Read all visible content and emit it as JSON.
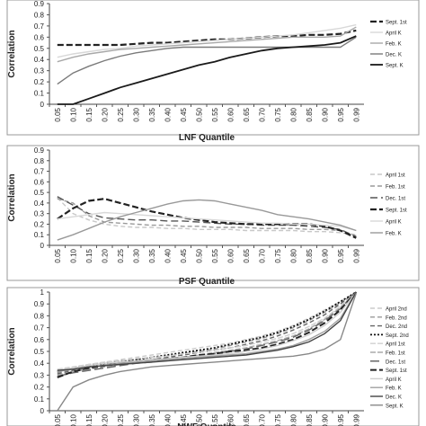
{
  "chart_data": [
    {
      "type": "line",
      "xlabel": "LNF Quantile",
      "ylabel": "Correlation",
      "categories": [
        "0.05",
        "0.10",
        "0.15",
        "0.20",
        "0.25",
        "0.30",
        "0.35",
        "0.40",
        "0.45",
        "0.50",
        "0.55",
        "0.60",
        "0.65",
        "0.70",
        "0.75",
        "0.80",
        "0.85",
        "0.90",
        "0.95",
        "0.99"
      ],
      "yticks": [
        "0",
        "0.1",
        "0.2",
        "0.3",
        "0.4",
        "0.5",
        "0.6",
        "0.7",
        "0.8",
        "0.9"
      ],
      "ylim": [
        0,
        0.9
      ],
      "legend_position": "right",
      "series": [
        {
          "name": "Sept. 1st",
          "color": "#222222",
          "dash": "7,3",
          "width": 2.2,
          "values": [
            0.53,
            0.53,
            0.53,
            0.53,
            0.53,
            0.54,
            0.55,
            0.55,
            0.56,
            0.57,
            0.58,
            0.58,
            0.59,
            0.6,
            0.61,
            0.61,
            0.62,
            0.62,
            0.63,
            0.66
          ]
        },
        {
          "name": "April K",
          "color": "#d8d8d8",
          "dash": "",
          "width": 1.4,
          "values": [
            0.42,
            0.45,
            0.47,
            0.49,
            0.5,
            0.52,
            0.53,
            0.54,
            0.55,
            0.56,
            0.57,
            0.58,
            0.59,
            0.6,
            0.61,
            0.62,
            0.64,
            0.66,
            0.68,
            0.71
          ]
        },
        {
          "name": "Feb. K",
          "color": "#a8a8a8",
          "dash": "",
          "width": 1.4,
          "values": [
            0.38,
            0.42,
            0.45,
            0.47,
            0.49,
            0.5,
            0.51,
            0.52,
            0.53,
            0.54,
            0.55,
            0.56,
            0.57,
            0.58,
            0.59,
            0.6,
            0.6,
            0.6,
            0.61,
            0.69
          ]
        },
        {
          "name": "Dec. K",
          "color": "#7a7a7a",
          "dash": "",
          "width": 1.4,
          "values": [
            0.18,
            0.28,
            0.34,
            0.39,
            0.43,
            0.46,
            0.48,
            0.5,
            0.51,
            0.51,
            0.51,
            0.51,
            0.51,
            0.51,
            0.51,
            0.51,
            0.51,
            0.51,
            0.51,
            0.6
          ]
        },
        {
          "name": "Sept. K",
          "color": "#1a1a1a",
          "dash": "",
          "width": 1.8,
          "values": [
            0.0,
            0.0,
            0.05,
            0.1,
            0.15,
            0.19,
            0.23,
            0.27,
            0.31,
            0.35,
            0.38,
            0.42,
            0.45,
            0.48,
            0.5,
            0.51,
            0.52,
            0.53,
            0.55,
            0.61
          ]
        }
      ]
    },
    {
      "type": "line",
      "xlabel": "PSF Quantile",
      "ylabel": "Correlation",
      "categories": [
        "0.05",
        "0.10",
        "0.15",
        "0.20",
        "0.25",
        "0.30",
        "0.35",
        "0.40",
        "0.45",
        "0.50",
        "0.55",
        "0.60",
        "0.65",
        "0.70",
        "0.75",
        "0.80",
        "0.85",
        "0.90",
        "0.95",
        "0.99"
      ],
      "yticks": [
        "0",
        "0.1",
        "0.2",
        "0.3",
        "0.4",
        "0.5",
        "0.6",
        "0.7",
        "0.8",
        "0.9"
      ],
      "ylim": [
        0,
        0.9
      ],
      "legend_position": "right",
      "series": [
        {
          "name": "April 1st",
          "color": "#c8c8c8",
          "dash": "5,3",
          "width": 1.4,
          "values": [
            0.45,
            0.3,
            0.24,
            0.2,
            0.18,
            0.17,
            0.17,
            0.16,
            0.16,
            0.15,
            0.15,
            0.15,
            0.14,
            0.14,
            0.14,
            0.14,
            0.13,
            0.13,
            0.12,
            0.1
          ]
        },
        {
          "name": "Feb. 1st",
          "color": "#9a9a9a",
          "dash": "5,3",
          "width": 1.4,
          "values": [
            0.44,
            0.4,
            0.28,
            0.22,
            0.21,
            0.2,
            0.19,
            0.19,
            0.18,
            0.18,
            0.17,
            0.17,
            0.17,
            0.16,
            0.16,
            0.16,
            0.15,
            0.15,
            0.14,
            0.09
          ]
        },
        {
          "name": "Dec. 1st",
          "color": "#555555",
          "dash": "8,4",
          "width": 1.4,
          "values": [
            0.46,
            0.38,
            0.3,
            0.26,
            0.25,
            0.24,
            0.24,
            0.23,
            0.23,
            0.22,
            0.21,
            0.2,
            0.2,
            0.19,
            0.19,
            0.19,
            0.18,
            0.17,
            0.15,
            0.08
          ]
        },
        {
          "name": "Sept. 1st",
          "color": "#222222",
          "dash": "7,3",
          "width": 2.2,
          "values": [
            0.25,
            0.35,
            0.42,
            0.44,
            0.4,
            0.36,
            0.32,
            0.29,
            0.26,
            0.24,
            0.22,
            0.21,
            0.2,
            0.2,
            0.2,
            0.2,
            0.2,
            0.18,
            0.14,
            0.07
          ]
        },
        {
          "name": "April K",
          "color": "#d8d8d8",
          "dash": "",
          "width": 1.4,
          "values": [
            0.25,
            0.27,
            0.29,
            0.31,
            0.3,
            0.29,
            0.28,
            0.27,
            0.26,
            0.25,
            0.24,
            0.23,
            0.22,
            0.21,
            0.21,
            0.2,
            0.2,
            0.19,
            0.18,
            0.14
          ]
        },
        {
          "name": "Feb. K",
          "color": "#999999",
          "dash": "",
          "width": 1.4,
          "values": [
            0.05,
            0.1,
            0.16,
            0.22,
            0.27,
            0.31,
            0.35,
            0.39,
            0.42,
            0.43,
            0.42,
            0.39,
            0.36,
            0.33,
            0.29,
            0.27,
            0.25,
            0.22,
            0.19,
            0.14
          ]
        }
      ]
    },
    {
      "type": "line",
      "xlabel": "NWF Quantile",
      "ylabel": "Correlation",
      "categories": [
        "0.05",
        "0.10",
        "0.15",
        "0.20",
        "0.25",
        "0.30",
        "0.35",
        "0.40",
        "0.45",
        "0.50",
        "0.55",
        "0.60",
        "0.65",
        "0.70",
        "0.75",
        "0.80",
        "0.85",
        "0.90",
        "0.95",
        "0.99"
      ],
      "yticks": [
        "0",
        "0.1",
        "0.2",
        "0.3",
        "0.4",
        "0.5",
        "0.6",
        "0.7",
        "0.8",
        "0.9",
        "1"
      ],
      "ylim": [
        0,
        1
      ],
      "legend_position": "right",
      "series": [
        {
          "name": "April 2nd",
          "color": "#cccccc",
          "dash": "5,3",
          "width": 1.4,
          "values": [
            0.33,
            0.36,
            0.39,
            0.41,
            0.43,
            0.45,
            0.47,
            0.49,
            0.51,
            0.53,
            0.55,
            0.57,
            0.6,
            0.63,
            0.67,
            0.72,
            0.78,
            0.85,
            0.92,
            1.0
          ]
        },
        {
          "name": "Feb. 2nd",
          "color": "#999999",
          "dash": "5,3",
          "width": 1.4,
          "values": [
            0.32,
            0.35,
            0.37,
            0.39,
            0.41,
            0.43,
            0.45,
            0.46,
            0.48,
            0.5,
            0.52,
            0.55,
            0.58,
            0.61,
            0.65,
            0.7,
            0.76,
            0.83,
            0.91,
            1.0
          ]
        },
        {
          "name": "Dec. 2nd",
          "color": "#666666",
          "dash": "5,3",
          "width": 1.4,
          "values": [
            0.31,
            0.34,
            0.36,
            0.38,
            0.4,
            0.42,
            0.43,
            0.45,
            0.47,
            0.49,
            0.51,
            0.53,
            0.56,
            0.59,
            0.63,
            0.68,
            0.74,
            0.81,
            0.9,
            1.0
          ]
        },
        {
          "name": "Sept. 2nd",
          "color": "#111111",
          "dash": "2,2",
          "width": 1.8,
          "values": [
            0.33,
            0.36,
            0.38,
            0.4,
            0.42,
            0.43,
            0.45,
            0.47,
            0.49,
            0.51,
            0.53,
            0.56,
            0.59,
            0.62,
            0.66,
            0.71,
            0.77,
            0.84,
            0.92,
            1.0
          ]
        },
        {
          "name": "April 1st",
          "color": "#d0d0d0",
          "dash": "6,2",
          "width": 1.4,
          "values": [
            0.35,
            0.37,
            0.39,
            0.41,
            0.42,
            0.44,
            0.45,
            0.46,
            0.48,
            0.49,
            0.51,
            0.53,
            0.55,
            0.58,
            0.61,
            0.65,
            0.71,
            0.78,
            0.88,
            1.0
          ]
        },
        {
          "name": "Feb. 1st",
          "color": "#aaaaaa",
          "dash": "6,2",
          "width": 1.4,
          "values": [
            0.3,
            0.33,
            0.35,
            0.37,
            0.39,
            0.41,
            0.42,
            0.44,
            0.45,
            0.47,
            0.49,
            0.51,
            0.53,
            0.56,
            0.59,
            0.63,
            0.69,
            0.77,
            0.87,
            1.0
          ]
        },
        {
          "name": "Dec. 1st",
          "color": "#666666",
          "dash": "10,4",
          "width": 1.5,
          "values": [
            0.29,
            0.32,
            0.34,
            0.36,
            0.38,
            0.4,
            0.41,
            0.43,
            0.44,
            0.46,
            0.48,
            0.5,
            0.52,
            0.55,
            0.58,
            0.62,
            0.68,
            0.76,
            0.86,
            1.0
          ]
        },
        {
          "name": "Sept. 1st",
          "color": "#222222",
          "dash": "7,3",
          "width": 2.0,
          "values": [
            0.28,
            0.33,
            0.36,
            0.38,
            0.4,
            0.41,
            0.43,
            0.44,
            0.45,
            0.47,
            0.48,
            0.5,
            0.51,
            0.53,
            0.56,
            0.6,
            0.66,
            0.74,
            0.85,
            1.0
          ]
        },
        {
          "name": "April K",
          "color": "#cfcfcf",
          "dash": "",
          "width": 1.4,
          "values": [
            0.34,
            0.36,
            0.38,
            0.4,
            0.41,
            0.42,
            0.43,
            0.44,
            0.45,
            0.46,
            0.47,
            0.48,
            0.5,
            0.52,
            0.55,
            0.59,
            0.64,
            0.72,
            0.83,
            1.0
          ]
        },
        {
          "name": "Feb. K",
          "color": "#a0a0a0",
          "dash": "",
          "width": 1.4,
          "values": [
            0.33,
            0.35,
            0.37,
            0.38,
            0.4,
            0.41,
            0.42,
            0.43,
            0.44,
            0.45,
            0.46,
            0.47,
            0.48,
            0.5,
            0.52,
            0.55,
            0.6,
            0.67,
            0.78,
            1.0
          ]
        },
        {
          "name": "Dec. K",
          "color": "#444444",
          "dash": "",
          "width": 1.4,
          "values": [
            0.34,
            0.35,
            0.37,
            0.38,
            0.39,
            0.4,
            0.41,
            0.42,
            0.43,
            0.44,
            0.45,
            0.46,
            0.47,
            0.49,
            0.51,
            0.54,
            0.58,
            0.65,
            0.76,
            1.0
          ]
        },
        {
          "name": "Sept. K",
          "color": "#888888",
          "dash": "",
          "width": 1.4,
          "values": [
            0.0,
            0.2,
            0.26,
            0.3,
            0.33,
            0.35,
            0.37,
            0.38,
            0.39,
            0.4,
            0.41,
            0.42,
            0.43,
            0.44,
            0.45,
            0.46,
            0.48,
            0.52,
            0.6,
            0.99
          ]
        }
      ]
    }
  ]
}
